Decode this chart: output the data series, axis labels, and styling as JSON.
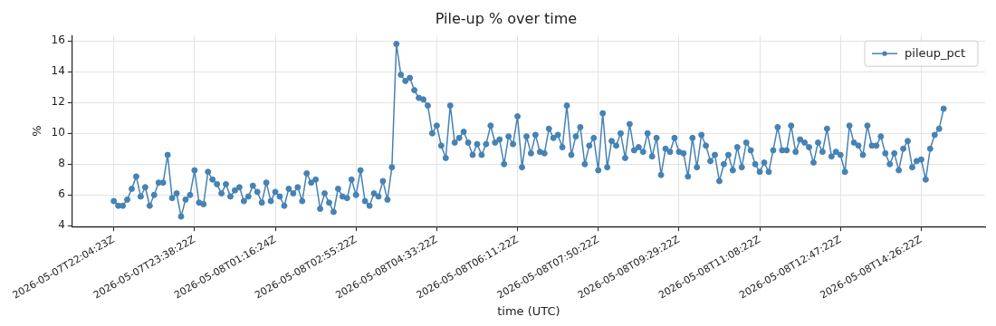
{
  "chart_data": {
    "type": "line",
    "title": "Pile-up % over time",
    "xlabel": "time (UTC)",
    "ylabel": "%",
    "categories": [
      "2026-05-07T22:04:23Z",
      null,
      null,
      null,
      null,
      null,
      null,
      null,
      null,
      null,
      null,
      null,
      null,
      null,
      null,
      null,
      null,
      null,
      "2026-05-07T23:38:22Z",
      null,
      null,
      null,
      null,
      null,
      null,
      null,
      null,
      null,
      null,
      null,
      null,
      null,
      null,
      null,
      null,
      null,
      "2026-05-08T01:16:24Z",
      null,
      null,
      null,
      null,
      null,
      null,
      null,
      null,
      null,
      null,
      null,
      null,
      null,
      null,
      null,
      null,
      null,
      "2026-05-08T02:55:22Z",
      null,
      null,
      null,
      null,
      null,
      null,
      null,
      null,
      null,
      null,
      null,
      null,
      null,
      null,
      null,
      null,
      null,
      "2026-05-08T04:33:22Z",
      null,
      null,
      null,
      null,
      null,
      null,
      null,
      null,
      null,
      null,
      null,
      null,
      null,
      null,
      null,
      null,
      null,
      "2026-05-08T06:11:22Z",
      null,
      null,
      null,
      null,
      null,
      null,
      null,
      null,
      null,
      null,
      null,
      null,
      null,
      null,
      null,
      null,
      null,
      "2026-05-08T07:50:22Z",
      null,
      null,
      null,
      null,
      null,
      null,
      null,
      null,
      null,
      null,
      null,
      null,
      null,
      null,
      null,
      null,
      null,
      "2026-05-08T09:29:22Z",
      null,
      null,
      null,
      null,
      null,
      null,
      null,
      null,
      null,
      null,
      null,
      null,
      null,
      null,
      null,
      null,
      null,
      "2026-05-08T11:08:22Z",
      null,
      null,
      null,
      null,
      null,
      null,
      null,
      null,
      null,
      null,
      null,
      null,
      null,
      null,
      null,
      null,
      null,
      "2026-05-08T12:47:22Z",
      null,
      null,
      null,
      null,
      null,
      null,
      null,
      null,
      null,
      null,
      null,
      null,
      null,
      null,
      null,
      null,
      null,
      "2026-05-08T14:26:22Z",
      null,
      null,
      null,
      null,
      null
    ],
    "series": [
      {
        "name": "pileup_pct",
        "color": "#4682b4",
        "values": [
          5.6,
          5.3,
          5.3,
          5.7,
          6.4,
          7.2,
          5.9,
          6.5,
          5.3,
          6.0,
          6.8,
          6.8,
          8.6,
          5.8,
          6.1,
          4.6,
          5.7,
          6.0,
          7.6,
          5.5,
          5.4,
          7.5,
          7.0,
          6.7,
          6.1,
          6.7,
          5.9,
          6.3,
          6.5,
          5.6,
          5.9,
          6.6,
          6.2,
          5.5,
          6.8,
          5.6,
          6.2,
          5.9,
          5.3,
          6.4,
          6.1,
          6.5,
          5.6,
          7.4,
          6.8,
          7.0,
          5.1,
          6.1,
          5.5,
          4.9,
          6.4,
          5.9,
          5.8,
          7.0,
          6.0,
          7.6,
          5.6,
          5.3,
          6.1,
          5.9,
          6.9,
          5.7,
          7.8,
          15.8,
          13.8,
          13.4,
          13.6,
          12.8,
          12.3,
          12.2,
          11.8,
          10.0,
          10.5,
          9.2,
          8.4,
          11.8,
          9.4,
          9.7,
          10.1,
          9.4,
          8.6,
          9.3,
          8.6,
          9.3,
          10.5,
          9.4,
          9.6,
          8.0,
          9.8,
          9.3,
          11.1,
          7.8,
          9.8,
          8.7,
          9.9,
          8.8,
          8.7,
          10.3,
          9.7,
          9.9,
          9.1,
          11.8,
          8.6,
          9.8,
          10.4,
          8.0,
          9.2,
          9.7,
          7.6,
          11.3,
          7.8,
          9.5,
          9.2,
          10.0,
          8.4,
          10.6,
          8.9,
          9.1,
          8.8,
          10.0,
          8.5,
          9.7,
          7.3,
          9.0,
          8.8,
          9.7,
          8.8,
          8.7,
          7.2,
          9.7,
          7.8,
          9.9,
          9.2,
          8.2,
          8.6,
          6.9,
          8.0,
          8.6,
          7.6,
          9.1,
          7.8,
          9.4,
          8.9,
          8.0,
          7.5,
          8.1,
          7.5,
          8.9,
          10.4,
          8.9,
          8.9,
          10.5,
          8.8,
          9.6,
          9.4,
          9.1,
          8.1,
          9.4,
          8.8,
          10.3,
          8.5,
          8.8,
          8.6,
          7.5,
          10.5,
          9.4,
          9.2,
          8.6,
          10.5,
          9.2,
          9.2,
          9.8,
          8.7,
          8.0,
          8.7,
          7.6,
          9.0,
          9.5,
          7.8,
          8.2,
          8.3,
          7.0,
          9.0,
          9.9,
          10.3,
          11.6
        ]
      }
    ],
    "ylim": [
      3.95,
      16.35
    ],
    "yticks": [
      4,
      6,
      8,
      10,
      12,
      14,
      16
    ],
    "grid": true,
    "legend": "top right",
    "marker": "circle",
    "line_style": "solid"
  }
}
